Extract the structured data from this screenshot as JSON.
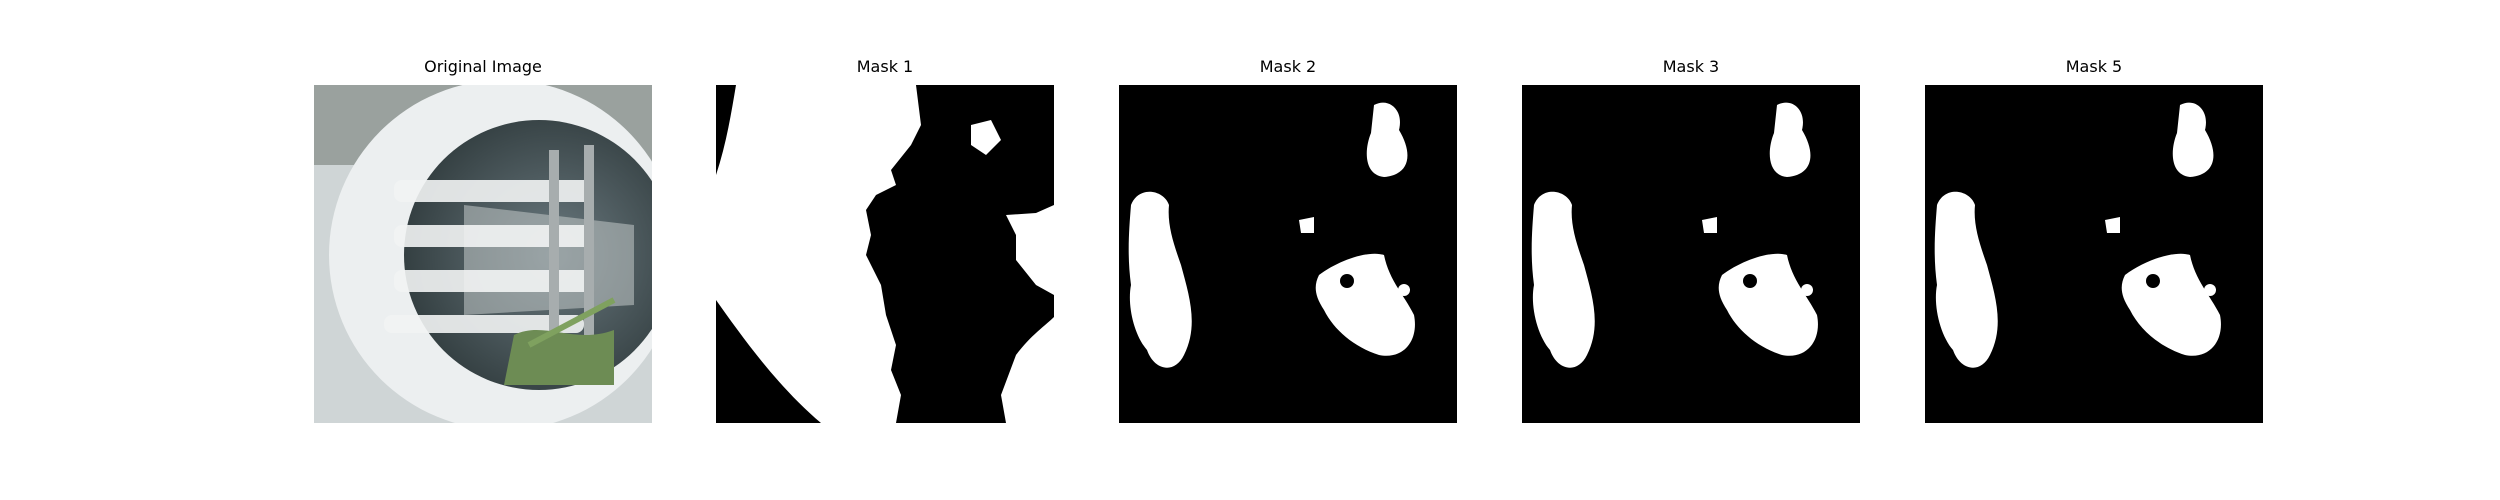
{
  "figure": {
    "panels": [
      {
        "title": "Original Image",
        "kind": "photo"
      },
      {
        "title": "Mask 1",
        "kind": "mask-large"
      },
      {
        "title": "Mask 2",
        "kind": "mask-blobs"
      },
      {
        "title": "Mask 3",
        "kind": "mask-blobs"
      },
      {
        "title": "Mask 5",
        "kind": "mask-blobs"
      }
    ]
  },
  "colors": {
    "mask_fg": "#ffffff",
    "mask_bg": "#000000"
  }
}
